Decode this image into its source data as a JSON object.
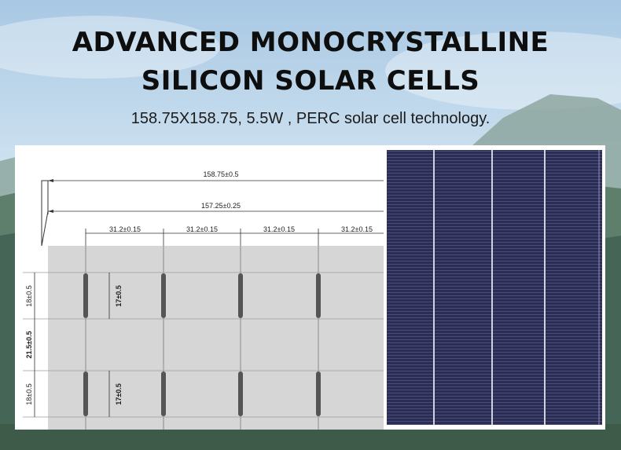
{
  "heading": {
    "line1": "ADVANCED MONOCRYSTALLINE",
    "line2": "SILICON SOLAR CELLS",
    "subtitle": "158.75X158.75,  5.5W ,  PERC solar cell technology."
  },
  "drawing": {
    "dim_total": "158.75±0.5",
    "dim_inner": "157.25±0.25",
    "dim_pitch": [
      "31.2±0.15",
      "31.2±0.15",
      "31.2±0.15",
      "31.2±0.15"
    ],
    "dim_seg_top": "18±0.5",
    "dim_seg_mid": "21.5±0.5",
    "dim_seg_bottom": "18±0.5",
    "dim_pad_top": "17±0.5",
    "dim_pad_bottom": "17±0.5"
  },
  "colors": {
    "sky": "#d3e5f1",
    "mountain": "#5c7a6a",
    "cell_blue": "#2a2c52",
    "drawing_gray": "#d6d6d6"
  }
}
